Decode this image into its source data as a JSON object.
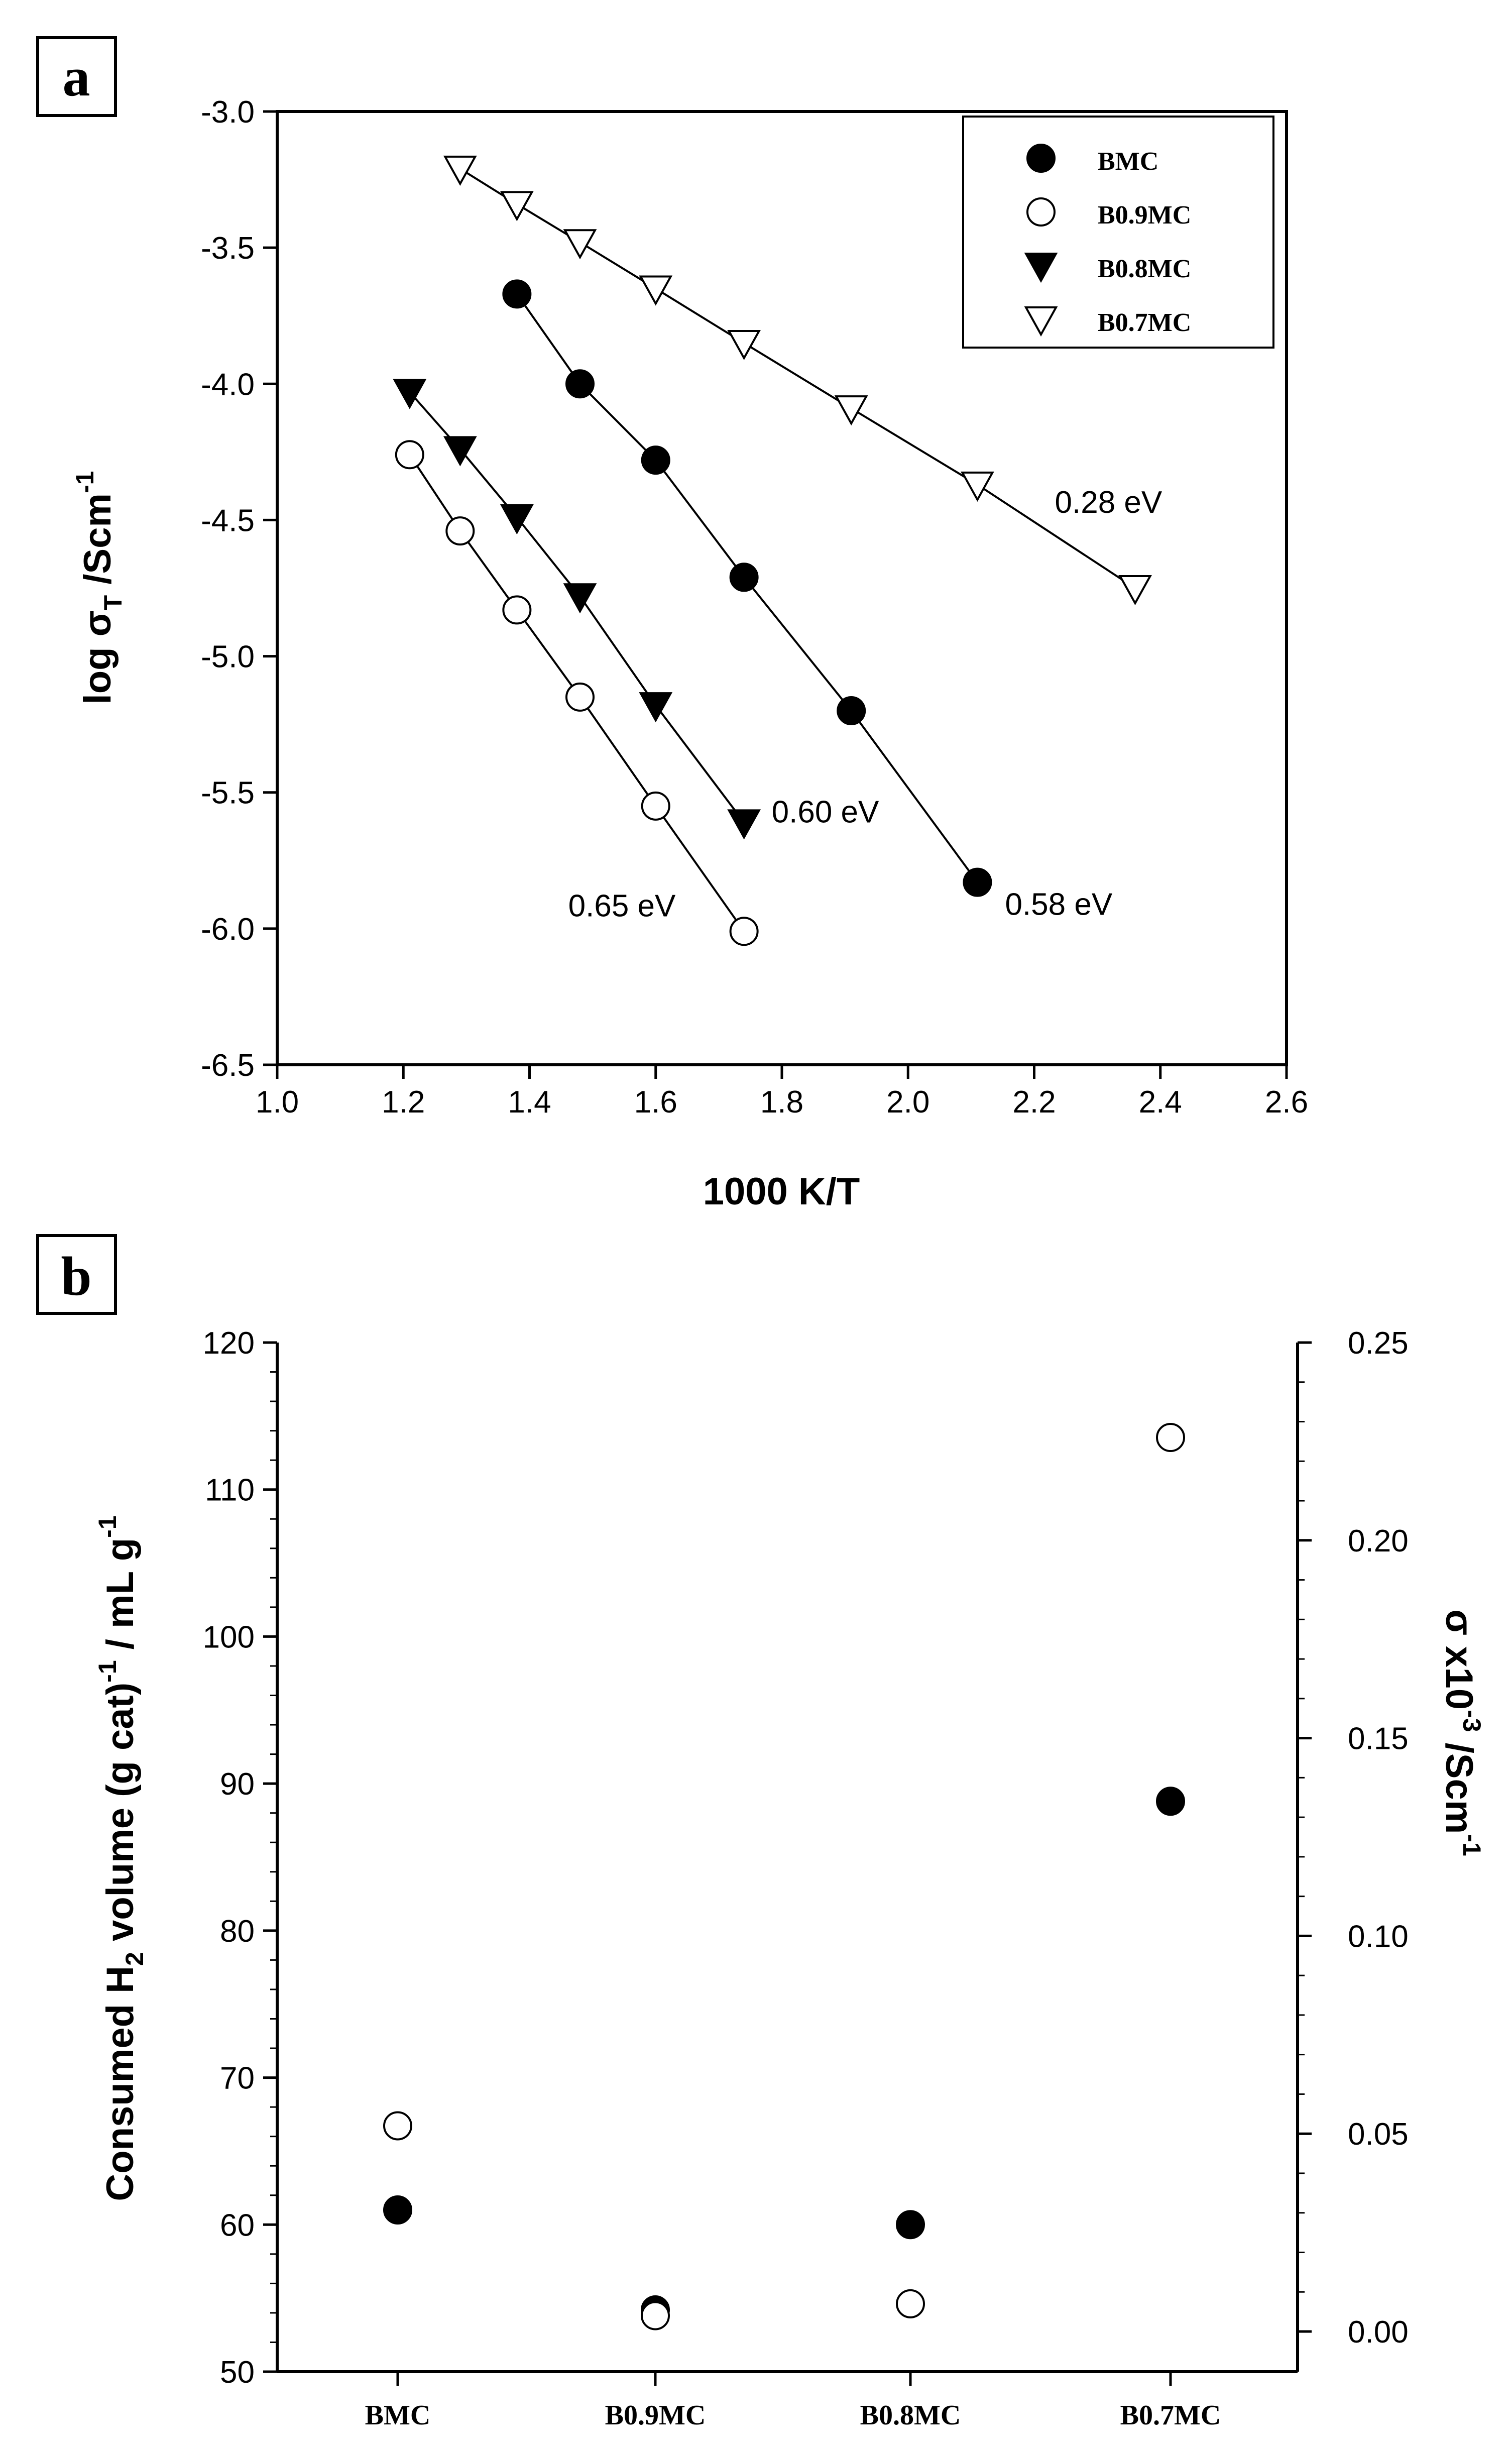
{
  "chart_data": [
    {
      "panel_label": "a",
      "type": "scatter",
      "xlabel": "1000 K/T",
      "ylabel_parts": {
        "prefix": "log σ",
        "sub": "T",
        "suffix": " /Scm",
        "sup": "-1"
      },
      "xlim": [
        1.0,
        2.6
      ],
      "ylim": [
        -6.5,
        -3.0
      ],
      "x_ticks": [
        1.0,
        1.2,
        1.4,
        1.6,
        1.8,
        2.0,
        2.2,
        2.4,
        2.6
      ],
      "x_tick_labels": [
        "1.0",
        "1.2",
        "1.4",
        "1.6",
        "1.8",
        "2.0",
        "2.2",
        "2.4",
        "2.6"
      ],
      "y_ticks": [
        -3.0,
        -3.5,
        -4.0,
        -4.5,
        -5.0,
        -5.5,
        -6.0,
        -6.5
      ],
      "y_tick_labels": [
        "-3.0",
        "-3.5",
        "-4.0",
        "-4.5",
        "-5.0",
        "-5.5",
        "-6.0",
        "-6.5"
      ],
      "legend_position": "top-right",
      "series": [
        {
          "name": "BMC",
          "marker": "filled-circle",
          "activation_energy": "0.58 eV",
          "x": [
            1.38,
            1.48,
            1.6,
            1.74,
            1.91,
            2.11
          ],
          "y": [
            -3.67,
            -4.0,
            -4.28,
            -4.71,
            -5.2,
            -5.83
          ]
        },
        {
          "name": "B0.9MC",
          "marker": "open-circle",
          "activation_energy": "0.65 eV",
          "x": [
            1.21,
            1.29,
            1.38,
            1.48,
            1.6,
            1.74
          ],
          "y": [
            -4.26,
            -4.54,
            -4.83,
            -5.15,
            -5.55,
            -6.01
          ]
        },
        {
          "name": "B0.8MC",
          "marker": "filled-triangle-down",
          "activation_energy": "0.60 eV",
          "x": [
            1.21,
            1.29,
            1.38,
            1.48,
            1.6,
            1.74
          ],
          "y": [
            -4.03,
            -4.24,
            -4.49,
            -4.78,
            -5.18,
            -5.61
          ]
        },
        {
          "name": "B0.7MC",
          "marker": "open-triangle-down",
          "activation_energy": "0.28 eV",
          "x": [
            1.29,
            1.38,
            1.48,
            1.6,
            1.74,
            1.91,
            2.11,
            2.36
          ],
          "y": [
            -3.21,
            -3.34,
            -3.48,
            -3.65,
            -3.85,
            -4.09,
            -4.37,
            -4.75
          ]
        }
      ]
    },
    {
      "panel_label": "b",
      "type": "scatter",
      "categories": [
        "BMC",
        "B0.9MC",
        "B0.8MC",
        "B0.7MC"
      ],
      "ylabel_left_parts": {
        "a": "Consumed H",
        "a_sub": "2",
        "b": " volume (g cat)",
        "b_sup": "-1",
        "c": " / mL g",
        "c_sup": "-1"
      },
      "ylabel_right_parts": {
        "a": "σ x10",
        "a_sup": "-3",
        "b": " /Scm",
        "b_sup": "-1"
      },
      "ylim_left": [
        50,
        120
      ],
      "ylim_right": [
        0.0,
        0.25
      ],
      "y_left_ticks": [
        50,
        60,
        70,
        80,
        90,
        100,
        110,
        120
      ],
      "y_left_tick_labels": [
        "50",
        "60",
        "70",
        "80",
        "90",
        "100",
        "110",
        "120"
      ],
      "y_right_ticks": [
        0.0,
        0.05,
        0.1,
        0.15,
        0.2,
        0.25
      ],
      "y_right_tick_labels": [
        "0.00",
        "0.05",
        "0.10",
        "0.15",
        "0.20",
        "0.25"
      ],
      "series": [
        {
          "name": "Consumed H2 volume",
          "axis": "left",
          "marker": "filled-circle",
          "values": [
            61.0,
            54.2,
            60.0,
            88.8
          ]
        },
        {
          "name": "σ x10-3",
          "axis": "right",
          "marker": "open-circle",
          "values": [
            0.052,
            0.004,
            0.007,
            0.226
          ]
        }
      ]
    }
  ]
}
